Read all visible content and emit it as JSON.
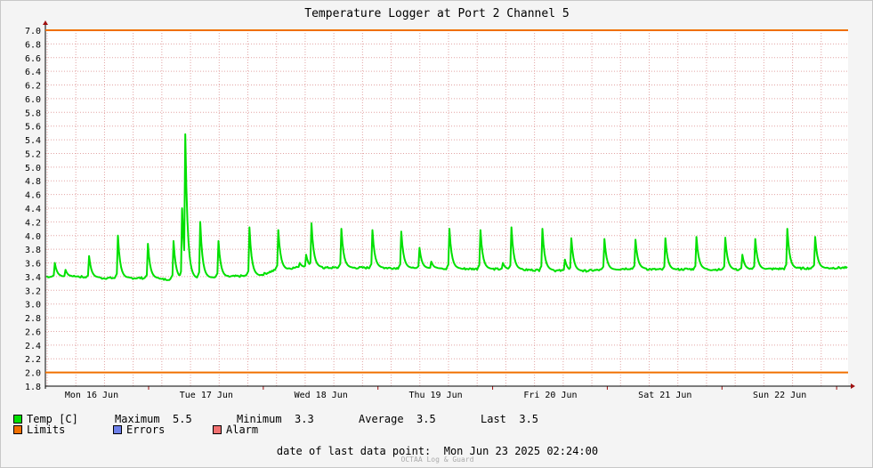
{
  "chart_data": {
    "type": "line",
    "title": "Temperature Logger at Port 2 Channel 5",
    "ylim": [
      1.8,
      7.0
    ],
    "y_ticks": [
      "7.0",
      "6.8",
      "6.6",
      "6.4",
      "6.2",
      "6.0",
      "5.8",
      "5.6",
      "5.4",
      "5.2",
      "5.0",
      "4.8",
      "4.6",
      "4.4",
      "4.2",
      "4.0",
      "3.8",
      "3.6",
      "3.4",
      "3.2",
      "3.0",
      "2.8",
      "2.6",
      "2.4",
      "2.2",
      "2.0",
      "1.8"
    ],
    "x_ticks": [
      "Mon 16 Jun",
      "Tue 17 Jun",
      "Wed 18 Jun",
      "Thu 19 Jun",
      "Fri 20 Jun",
      "Sat 21 Jun",
      "Sun 22 Jun"
    ],
    "grid": true,
    "limits": {
      "upper": 7.0,
      "lower": 2.0
    },
    "series": [
      {
        "name": "Temp [C]",
        "color": "#00e000",
        "baseline": [
          [
            0,
            3.4
          ],
          [
            30,
            3.4
          ],
          [
            45,
            3.38
          ],
          [
            90,
            3.38
          ],
          [
            110,
            3.36
          ],
          [
            140,
            3.38
          ],
          [
            170,
            3.4
          ],
          [
            200,
            3.42
          ],
          [
            215,
            3.5
          ],
          [
            225,
            3.52
          ],
          [
            240,
            3.54
          ],
          [
            260,
            3.53
          ],
          [
            300,
            3.53
          ],
          [
            360,
            3.52
          ],
          [
            420,
            3.51
          ],
          [
            500,
            3.48
          ],
          [
            520,
            3.5
          ],
          [
            545,
            3.52
          ],
          [
            560,
            3.51
          ],
          [
            580,
            3.5
          ],
          [
            600,
            3.51
          ],
          [
            640,
            3.5
          ],
          [
            700,
            3.52
          ],
          [
            745,
            3.53
          ]
        ],
        "spikes": [
          [
            5,
            3.6
          ],
          [
            12,
            3.5
          ],
          [
            26,
            3.7
          ],
          [
            44,
            4.0
          ],
          [
            62,
            3.88
          ],
          [
            78,
            3.92
          ],
          [
            83,
            4.4
          ],
          [
            85,
            5.48
          ],
          [
            94,
            4.2
          ],
          [
            105,
            3.92
          ],
          [
            124,
            4.12
          ],
          [
            142,
            4.08
          ],
          [
            155,
            3.6
          ],
          [
            159,
            3.72
          ],
          [
            162,
            4.18
          ],
          [
            180,
            4.1
          ],
          [
            199,
            4.08
          ],
          [
            217,
            4.06
          ],
          [
            219,
            3.62
          ],
          [
            228,
            3.82
          ],
          [
            235,
            3.62
          ],
          [
            246,
            4.1
          ],
          [
            265,
            4.08
          ],
          [
            279,
            3.6
          ],
          [
            284,
            4.12
          ],
          [
            303,
            4.1
          ],
          [
            317,
            3.65
          ],
          [
            321,
            3.96
          ],
          [
            341,
            3.95
          ],
          [
            360,
            3.94
          ],
          [
            378,
            3.96
          ],
          [
            397,
            3.98
          ],
          [
            415,
            3.97
          ],
          [
            425,
            3.72
          ],
          [
            433,
            3.95
          ],
          [
            453,
            4.1
          ],
          [
            470,
            3.98
          ]
        ]
      }
    ],
    "legend": {
      "temp_label": "Temp [C]",
      "maximum_label": "Maximum",
      "maximum_value": "5.5",
      "minimum_label": "Minimum",
      "minimum_value": "3.3",
      "average_label": "Average",
      "average_value": "3.5",
      "last_label": "Last",
      "last_value": "3.5",
      "limits_label": "Limits",
      "errors_label": "Errors",
      "alarm_label": "Alarm"
    }
  },
  "colors": {
    "temp": "#00e000",
    "limits": "#f07000",
    "errors": "#6d7fe8",
    "alarm": "#f07070",
    "grid": "#e2a4a4",
    "axis_arrow": "#a01010"
  },
  "footer": {
    "label": "date of last data point:",
    "value": "Mon Jun 23 2025 02:24:00",
    "brand": "OCTAA Log & Guard"
  }
}
